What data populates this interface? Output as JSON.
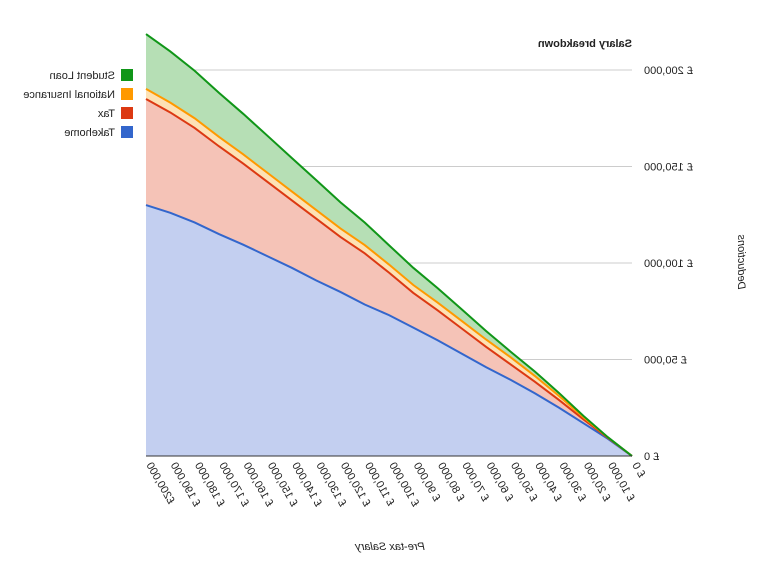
{
  "chart_data": {
    "type": "area",
    "stacked": true,
    "title": "Salary breakdown",
    "xlabel": "Pre-tax Salary",
    "ylabel": "Deductions",
    "ylim": [
      0,
      200000
    ],
    "grid": true,
    "legend_position": "left",
    "categories": [
      "£ 0",
      "£ 10,000",
      "£ 20,000",
      "£ 30,000",
      "£ 40,000",
      "£ 50,000",
      "£ 60,000",
      "£ 70,000",
      "£ 80,000",
      "£ 90,000",
      "£ 100,000",
      "£ 110,000",
      "£ 120,000",
      "£ 130,000",
      "£ 140,000",
      "£ 150,000",
      "£ 160,000",
      "£ 170,000",
      "£ 180,000",
      "£ 190,000",
      "£200,000"
    ],
    "y_ticks": [
      {
        "value": 0,
        "label": "£ 0"
      },
      {
        "value": 50000,
        "label": "£ 50,000"
      },
      {
        "value": 100000,
        "label": "£ 100,000"
      },
      {
        "value": 150000,
        "label": "£ 150,000"
      },
      {
        "value": 200000,
        "label": "£ 200,000"
      }
    ],
    "series": [
      {
        "name": "Takehome",
        "color": "#3366cc",
        "fill": "#c3cff0",
        "values": [
          0,
          9000,
          17000,
          25000,
          32500,
          39500,
          46000,
          53000,
          60000,
          66500,
          73000,
          78500,
          85000,
          91000,
          97500,
          103500,
          109500,
          115000,
          121000,
          126000,
          130000
        ]
      },
      {
        "name": "Tax",
        "color": "#dc3912",
        "fill": "#f5c3b7",
        "values": [
          0,
          500,
          2000,
          4000,
          6000,
          8000,
          10500,
          13000,
          15500,
          18000,
          22000,
          26500,
          28500,
          32000,
          35000,
          38500,
          42000,
          45500,
          49000,
          52000,
          55000
        ]
      },
      {
        "name": "National Insurance",
        "color": "#ff9900",
        "fill": "#fde2b5",
        "values": [
          0,
          200,
          1100,
          2100,
          3000,
          3700,
          3800,
          3900,
          4000,
          4100,
          4200,
          4300,
          4400,
          4500,
          4600,
          4700,
          4800,
          4900,
          5000,
          5100,
          5200
        ]
      },
      {
        "name": "Student Loan",
        "color": "#109618",
        "fill": "#b6dfb5",
        "values": [
          0,
          100,
          700,
          1500,
          2300,
          2900,
          4400,
          6000,
          7500,
          8900,
          10000,
          11700,
          13600,
          15500,
          17300,
          19200,
          21000,
          22800,
          24600,
          26500,
          28400
        ]
      }
    ]
  }
}
